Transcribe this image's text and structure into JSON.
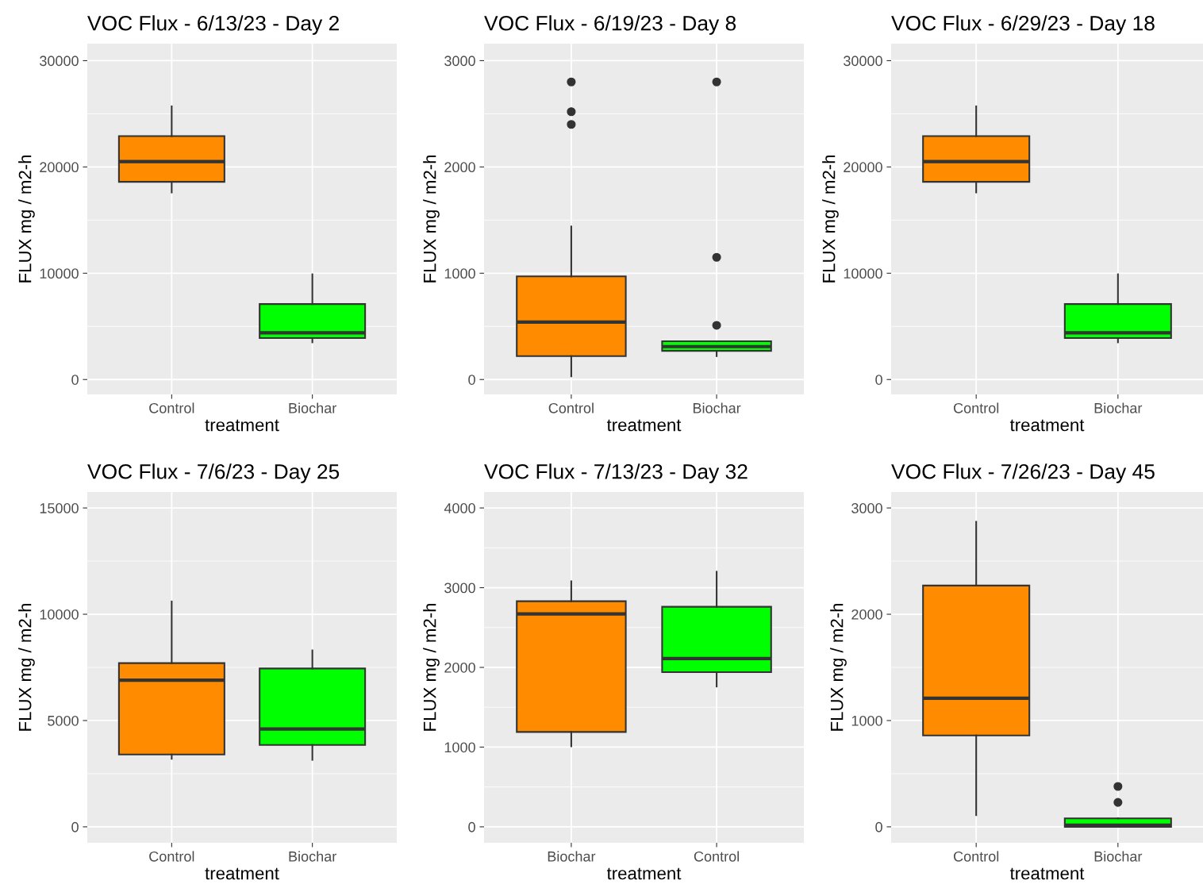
{
  "chart_data": [
    {
      "type": "box",
      "title": "VOC Flux - 6/13/23 - Day 2",
      "xlabel": "treatment",
      "ylabel": "FLUX mg / m2-h",
      "categories": [
        "Control",
        "Biochar"
      ],
      "colors": [
        "#ff8c00",
        "#00ff00"
      ],
      "ylim": [
        -1400,
        31600
      ],
      "yticks": [
        0,
        10000,
        20000,
        30000
      ],
      "grid": true,
      "boxes": [
        {
          "low": 17600,
          "q1": 18600,
          "median": 20500,
          "q3": 22900,
          "high": 25700
        },
        {
          "low": 3500,
          "q1": 3900,
          "median": 4400,
          "q3": 7100,
          "high": 9900
        }
      ]
    },
    {
      "type": "box",
      "title": "VOC Flux - 6/19/23 - Day 8",
      "xlabel": "treatment",
      "ylabel": "FLUX mg / m2-h",
      "categories": [
        "Control",
        "Biochar"
      ],
      "colors": [
        "#ff8c00",
        "#00ff00"
      ],
      "ylim": [
        -140,
        3160
      ],
      "yticks": [
        0,
        1000,
        2000,
        3000
      ],
      "grid": true,
      "boxes": [
        {
          "low": 30,
          "q1": 220,
          "median": 540,
          "q3": 970,
          "high": 1440,
          "outliers": [
            2800,
            2520,
            2400
          ]
        },
        {
          "low": 220,
          "q1": 270,
          "median": 310,
          "q3": 360,
          "high": 360,
          "outliers": [
            2800,
            1150,
            510
          ]
        }
      ]
    },
    {
      "type": "box",
      "title": "VOC Flux - 6/29/23 - Day 18",
      "xlabel": "treatment",
      "ylabel": "FLUX mg / m2-h",
      "categories": [
        "Control",
        "Biochar"
      ],
      "colors": [
        "#ff8c00",
        "#00ff00"
      ],
      "ylim": [
        -1400,
        31600
      ],
      "yticks": [
        0,
        10000,
        20000,
        30000
      ],
      "grid": true,
      "boxes": [
        {
          "low": 17600,
          "q1": 18600,
          "median": 20500,
          "q3": 22900,
          "high": 25700
        },
        {
          "low": 3500,
          "q1": 3900,
          "median": 4400,
          "q3": 7100,
          "high": 9900
        }
      ]
    },
    {
      "type": "box",
      "title": "VOC Flux - 7/6/23 - Day 25",
      "xlabel": "treatment",
      "ylabel": "FLUX mg / m2-h",
      "categories": [
        "Control",
        "Biochar"
      ],
      "colors": [
        "#ff8c00",
        "#00ff00"
      ],
      "ylim": [
        -750,
        15750
      ],
      "yticks": [
        0,
        5000,
        10000,
        15000
      ],
      "grid": true,
      "boxes": [
        {
          "low": 3200,
          "q1": 3400,
          "median": 6900,
          "q3": 7700,
          "high": 10600
        },
        {
          "low": 3150,
          "q1": 3850,
          "median": 4600,
          "q3": 7450,
          "high": 8300
        }
      ]
    },
    {
      "type": "box",
      "title": "VOC Flux - 7/13/23 - Day 32",
      "xlabel": "treatment",
      "ylabel": "FLUX mg / m2-h",
      "categories": [
        "Biochar",
        "Control"
      ],
      "colors": [
        "#ff8c00",
        "#00ff00"
      ],
      "ylim": [
        -200,
        4200
      ],
      "yticks": [
        0,
        1000,
        2000,
        3000,
        4000
      ],
      "grid": true,
      "boxes": [
        {
          "low": 1010,
          "q1": 1190,
          "median": 2670,
          "q3": 2830,
          "high": 3080
        },
        {
          "low": 1760,
          "q1": 1940,
          "median": 2110,
          "q3": 2760,
          "high": 3200
        }
      ]
    },
    {
      "type": "box",
      "title": "VOC Flux - 7/26/23 - Day 45",
      "xlabel": "treatment",
      "ylabel": "FLUX mg / m2-h",
      "categories": [
        "Control",
        "Biochar"
      ],
      "colors": [
        "#ff8c00",
        "#00ff00"
      ],
      "ylim": [
        -150,
        3150
      ],
      "yticks": [
        0,
        1000,
        2000,
        3000
      ],
      "grid": true,
      "boxes": [
        {
          "low": 110,
          "q1": 860,
          "median": 1210,
          "q3": 2270,
          "high": 2870
        },
        {
          "low": 0,
          "q1": 0,
          "median": 15,
          "q3": 80,
          "high": 80,
          "outliers": [
            380,
            230
          ]
        }
      ]
    }
  ]
}
